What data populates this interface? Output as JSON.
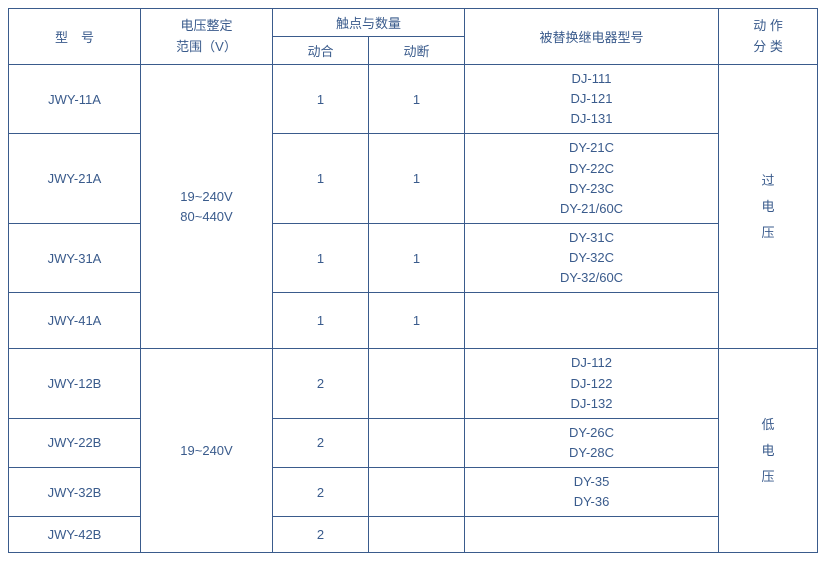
{
  "colors": {
    "border": "#3a5b8c",
    "text": "#3a5b8c",
    "background": "#ffffff"
  },
  "header": {
    "model": "型　号",
    "range": "电压整定\n范围（V）",
    "contacts_group": "触点与数量",
    "contact_close": "动合",
    "contact_open": "动断",
    "replaced": "被替换继电器型号",
    "action_type": "动 作\n分 类"
  },
  "group_a": {
    "range_lines": [
      "19~240V",
      "80~440V"
    ],
    "action_lines": [
      "过",
      "电",
      "压"
    ],
    "rows": [
      {
        "model": "JWY-11A",
        "c1": "1",
        "c2": "1",
        "replace": [
          "DJ-111",
          "DJ-121",
          "DJ-131"
        ]
      },
      {
        "model": "JWY-21A",
        "c1": "1",
        "c2": "1",
        "replace": [
          "DY-21C",
          "DY-22C",
          "DY-23C",
          "DY-21/60C"
        ]
      },
      {
        "model": "JWY-31A",
        "c1": "1",
        "c2": "1",
        "replace": [
          "DY-31C",
          "DY-32C",
          "DY-32/60C"
        ]
      },
      {
        "model": "JWY-41A",
        "c1": "1",
        "c2": "1",
        "replace": []
      }
    ]
  },
  "group_b": {
    "range_lines": [
      "19~240V"
    ],
    "action_lines": [
      "低",
      "电",
      "压"
    ],
    "rows": [
      {
        "model": "JWY-12B",
        "c1": "2",
        "c2": "",
        "replace": [
          "DJ-112",
          "DJ-122",
          "DJ-132"
        ]
      },
      {
        "model": "JWY-22B",
        "c1": "2",
        "c2": "",
        "replace": [
          "DY-26C",
          "DY-28C"
        ]
      },
      {
        "model": "JWY-32B",
        "c1": "2",
        "c2": "",
        "replace": [
          "DY-35",
          "DY-36"
        ]
      },
      {
        "model": "JWY-42B",
        "c1": "2",
        "c2": "",
        "replace": []
      }
    ]
  }
}
